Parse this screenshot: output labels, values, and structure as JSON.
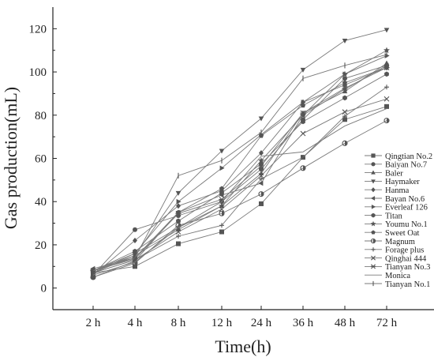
{
  "chart_data": {
    "type": "line",
    "xlabel": "Time(h)",
    "ylabel": "Gas production(mL)",
    "categories": [
      "2 h",
      "4 h",
      "8 h",
      "12 h",
      "24 h",
      "36 h",
      "48 h",
      "72 h"
    ],
    "ylim": [
      -10,
      130
    ],
    "yticks": [
      0,
      20,
      40,
      60,
      80,
      100,
      120
    ],
    "grid": false,
    "legend_position": "right",
    "line_color": "#7a7a7a",
    "marker_color": "#555555",
    "series": [
      {
        "name": "Qingtian No.2",
        "marker": "square",
        "values": [
          7,
          10,
          20.5,
          26,
          39,
          60.5,
          78,
          84
        ]
      },
      {
        "name": "Baiyan No.7",
        "marker": "circle",
        "values": [
          6,
          27,
          33.5,
          40,
          55,
          78,
          97,
          103
        ]
      },
      {
        "name": "Baler",
        "marker": "triangle-up",
        "values": [
          8,
          15,
          27,
          38,
          53,
          81,
          91,
          104
        ]
      },
      {
        "name": "Haymaker",
        "marker": "triangle-down",
        "values": [
          7,
          15,
          44,
          63.5,
          78.5,
          101,
          114.5,
          119.5
        ]
      },
      {
        "name": "Hanma",
        "marker": "diamond",
        "values": [
          6,
          22,
          38,
          45,
          62.5,
          86,
          94,
          102
        ]
      },
      {
        "name": "Bayan No.6",
        "marker": "triangle-left",
        "values": [
          9,
          14,
          35,
          43,
          48.5,
          80,
          92,
          103
        ]
      },
      {
        "name": "Everleaf 126",
        "marker": "triangle-right",
        "values": [
          7,
          16,
          40,
          55.5,
          71,
          86,
          99,
          107.5
        ]
      },
      {
        "name": "Titan",
        "marker": "hexagon",
        "values": [
          8,
          17,
          31,
          44,
          57.5,
          77,
          88,
          99
        ]
      },
      {
        "name": "Youmu No.1",
        "marker": "star",
        "values": [
          8,
          16,
          28,
          38,
          59,
          80,
          99,
          110
        ]
      },
      {
        "name": "Sweet Oat",
        "marker": "pentagon",
        "values": [
          5,
          12.5,
          35,
          46,
          70.5,
          84.5,
          95,
          102
        ]
      },
      {
        "name": "Magnum",
        "marker": "circle-half",
        "values": [
          5,
          11.5,
          29,
          34.5,
          43.5,
          55.5,
          67,
          77.5
        ]
      },
      {
        "name": "Forage plus",
        "marker": "plus",
        "values": [
          7,
          13,
          24,
          29,
          50.5,
          60.5,
          79.5,
          93
        ]
      },
      {
        "name": "Qinghai 444",
        "marker": "x",
        "values": [
          7,
          13,
          26,
          36.5,
          52,
          71.5,
          81.5,
          87.5
        ]
      },
      {
        "name": "Tianyan No.3",
        "marker": "asterisk",
        "values": [
          8,
          13.5,
          34.5,
          41,
          56.5,
          81,
          92.5,
          102
        ]
      },
      {
        "name": "Monica",
        "marker": "none",
        "values": [
          6,
          12,
          28,
          40,
          61,
          63,
          75,
          83
        ]
      },
      {
        "name": "Tianyan No.1",
        "marker": "vbar",
        "values": [
          8,
          14,
          52,
          59,
          72,
          97,
          103,
          108
        ]
      }
    ]
  }
}
